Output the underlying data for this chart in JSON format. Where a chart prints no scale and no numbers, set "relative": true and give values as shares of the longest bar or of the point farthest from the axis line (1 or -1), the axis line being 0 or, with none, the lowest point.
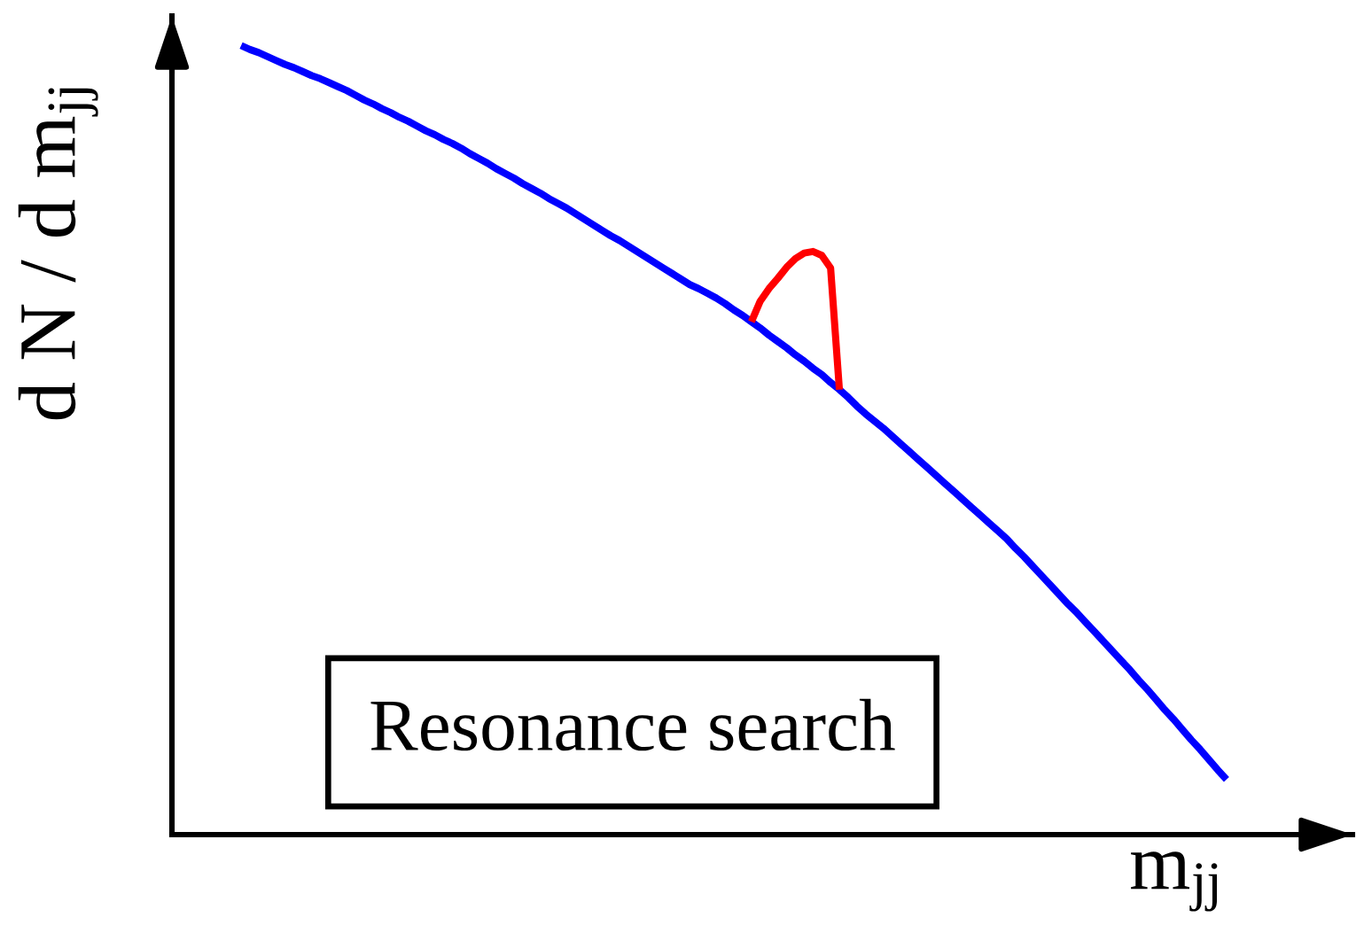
{
  "chart_data": {
    "type": "line",
    "relative": true,
    "ylabel": "d N / d m$_{jj}$",
    "xlabel": "m$_{jj}$",
    "annotations": [
      "Resonance search"
    ],
    "categories": [
      null,
      null,
      null,
      null,
      null,
      null,
      null,
      null,
      null,
      null,
      null,
      null,
      null,
      null,
      null,
      null,
      null,
      null,
      null,
      null,
      null,
      null,
      null,
      null,
      null,
      null,
      null,
      null,
      null,
      null,
      null,
      null,
      null,
      null,
      null,
      null,
      null,
      null,
      null,
      null,
      null,
      null,
      null,
      null,
      null,
      null,
      null,
      null,
      null,
      null,
      null,
      null,
      null,
      null,
      null,
      null,
      null,
      null,
      null,
      null,
      null,
      null,
      null,
      null,
      null,
      null,
      null,
      null,
      null,
      null,
      null,
      null,
      null,
      null,
      null,
      null,
      null,
      null,
      null,
      null,
      null,
      null,
      null,
      null,
      null,
      null,
      null,
      null,
      null,
      null,
      null,
      null,
      null,
      null,
      null,
      null,
      null,
      null,
      null,
      null,
      null,
      null,
      null,
      null,
      null,
      null,
      null,
      null,
      null,
      null,
      null,
      null,
      null
    ],
    "series": [
      {
        "color": "#0000ff",
        "values": [
          1.0,
          0.995,
          0.991,
          0.986,
          0.981,
          0.976,
          0.972,
          0.967,
          0.962,
          0.958,
          0.953,
          0.948,
          0.943,
          0.937,
          0.931,
          0.926,
          0.92,
          0.915,
          0.909,
          0.904,
          0.898,
          0.892,
          0.887,
          0.881,
          0.876,
          0.87,
          0.863,
          0.857,
          0.851,
          0.844,
          0.838,
          0.832,
          0.825,
          0.819,
          0.813,
          0.806,
          0.8,
          0.794,
          0.787,
          0.78,
          0.773,
          0.766,
          0.759,
          0.753,
          0.746,
          0.739,
          0.732,
          0.725,
          0.718,
          0.711,
          0.704,
          0.697,
          0.692,
          0.686,
          0.68,
          0.673,
          0.665,
          0.658,
          0.65,
          0.642,
          0.633,
          0.625,
          0.617,
          0.608,
          0.6,
          0.591,
          0.583,
          0.573,
          0.564,
          0.554,
          0.543,
          0.533,
          0.524,
          0.515,
          0.505,
          0.495,
          0.485,
          0.475,
          0.465,
          0.455,
          0.445,
          0.435,
          0.425,
          0.415,
          0.405,
          0.395,
          0.385,
          0.375,
          0.363,
          0.352,
          0.34,
          0.328,
          0.316,
          0.304,
          0.292,
          0.281,
          0.269,
          0.257,
          0.245,
          0.233,
          0.221,
          0.209,
          0.196,
          0.184,
          0.171,
          0.158,
          0.146,
          0.133,
          0.12,
          0.108,
          0.095,
          0.082,
          0.07
        ]
      },
      {
        "color": "#ff0000",
        "values": [
          null,
          null,
          null,
          null,
          null,
          null,
          null,
          null,
          null,
          null,
          null,
          null,
          null,
          null,
          null,
          null,
          null,
          null,
          null,
          null,
          null,
          null,
          null,
          null,
          null,
          null,
          null,
          null,
          null,
          null,
          null,
          null,
          null,
          null,
          null,
          null,
          null,
          null,
          null,
          null,
          null,
          null,
          null,
          null,
          null,
          null,
          null,
          null,
          null,
          null,
          null,
          null,
          null,
          null,
          null,
          null,
          null,
          null,
          0.65,
          0.676,
          0.692,
          0.705,
          0.719,
          0.73,
          0.737,
          0.739,
          0.734,
          0.718,
          0.564,
          null,
          null,
          null,
          null,
          null,
          null,
          null,
          null,
          null,
          null,
          null,
          null,
          null,
          null,
          null,
          null,
          null,
          null,
          null,
          null,
          null,
          null,
          null,
          null,
          null,
          null,
          null,
          null,
          null,
          null,
          null,
          null,
          null,
          null,
          null,
          null,
          null,
          null,
          null,
          null,
          null,
          null,
          null,
          null
        ]
      }
    ]
  }
}
